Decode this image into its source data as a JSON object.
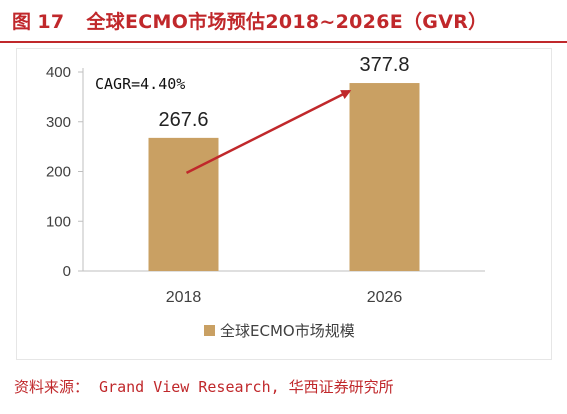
{
  "figure": {
    "label": "图",
    "number": "17",
    "title": "全球ECMO市场预估2018~2026E（GVR）"
  },
  "source": {
    "label": "资料来源：",
    "value": "Grand View Research, 华西证券研究所"
  },
  "colors": {
    "title_red": "#c0282b",
    "bar": "#c9a063",
    "arrow": "#c0282b",
    "axis": "#bfbfbf",
    "text": "#404040"
  },
  "chart_data": {
    "type": "bar",
    "categories": [
      "2018",
      "2026"
    ],
    "series": [
      {
        "name": "全球ECMO市场规模",
        "values": [
          267.6,
          377.8
        ]
      }
    ],
    "data_labels": [
      "267.6",
      "377.8"
    ],
    "annotation": "CAGR=4.40%",
    "y_ticks": [
      0,
      100,
      200,
      300,
      400
    ],
    "ylim": [
      0,
      400
    ],
    "legend_position": "bottom",
    "grid": false
  }
}
